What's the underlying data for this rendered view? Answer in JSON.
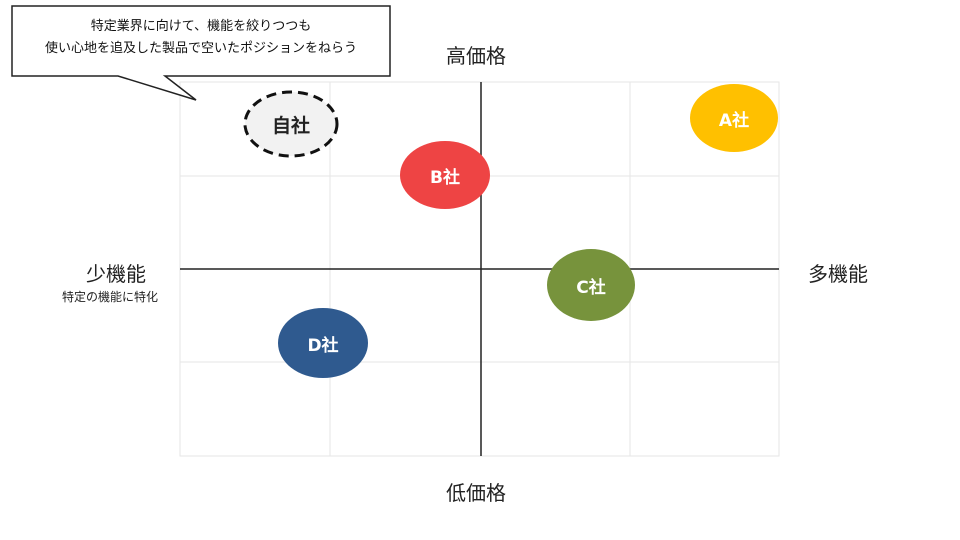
{
  "callout": {
    "line1": "特定業界に向けて、機能を絞りつつも",
    "line2": "使い心地を追及した製品で空いたポジションをねらう"
  },
  "axes": {
    "top": "高価格",
    "bottom": "低価格",
    "left": "少機能",
    "left_sub": "特定の機能に特化",
    "right": "多機能"
  },
  "companies": [
    {
      "id": "self",
      "label": "自社",
      "color": "#f2f2f2"
    },
    {
      "id": "a",
      "label": "A社",
      "color": "#ffc000"
    },
    {
      "id": "b",
      "label": "B社",
      "color": "#ee4444"
    },
    {
      "id": "c",
      "label": "C社",
      "color": "#77933c"
    },
    {
      "id": "d",
      "label": "D社",
      "color": "#2f5a8f"
    }
  ]
}
